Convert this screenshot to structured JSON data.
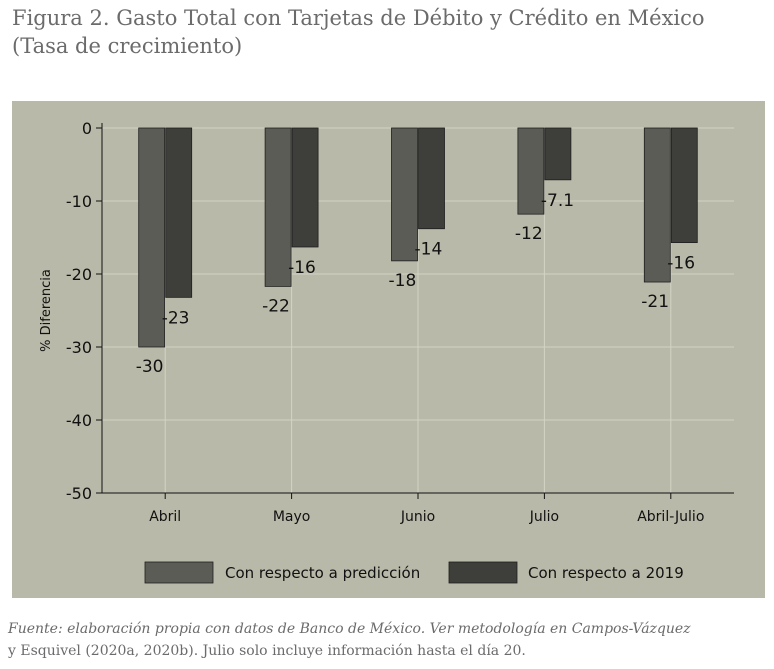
{
  "title": {
    "line1": "Figura 2. Gasto Total con Tarjetas de Débito y Crédito en México",
    "line2": "(Tasa de crecimiento)"
  },
  "source": {
    "line1": "Fuente: elaboración propia con datos de Banco de México. Ver metodología en Campos-Vázquez",
    "line2": "y Esquivel (2020a, 2020b). Julio solo incluye información hasta el día 20."
  },
  "colors": {
    "background": "#b9b9a9",
    "grid": "#d4d4c5",
    "series_1": "#5c5c57",
    "series_2": "#3e3e3a",
    "text": "#111111"
  },
  "chart_data": {
    "type": "bar",
    "title": "Gasto Total con Tarjetas de Débito y Crédito en México",
    "xlabel": "",
    "ylabel": "% Diferencia",
    "ylim": [
      -50,
      0
    ],
    "yticks": [
      0,
      -10,
      -20,
      -30,
      -40,
      -50
    ],
    "ytick_labels": [
      "0",
      "-10",
      "-20",
      "-30",
      "-40",
      "-50"
    ],
    "categories": [
      "Abril",
      "Mayo",
      "Junio",
      "Julio",
      "Abril-Julio"
    ],
    "series": [
      {
        "name": "Con respecto a predicción",
        "values": [
          -30,
          -21.7,
          -18.2,
          -11.8,
          -21.1
        ],
        "labels": [
          "-30",
          "-22",
          "-18",
          "-12",
          "-21"
        ]
      },
      {
        "name": "Con respecto a 2019",
        "values": [
          -23.2,
          -16.3,
          -13.8,
          -7.1,
          -15.7
        ],
        "labels": [
          "-23",
          "-16",
          "-14",
          "-7.1",
          "-16"
        ]
      }
    ],
    "grid": true,
    "legend_position": "bottom"
  }
}
